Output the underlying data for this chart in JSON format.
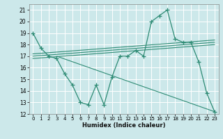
{
  "xlabel": "Humidex (Indice chaleur)",
  "bg_color": "#cce8ea",
  "grid_color": "#ffffff",
  "line_color": "#2e8b74",
  "xlim": [
    -0.5,
    23.5
  ],
  "ylim": [
    12,
    21.5
  ],
  "xticks": [
    0,
    1,
    2,
    3,
    4,
    5,
    6,
    7,
    8,
    9,
    10,
    11,
    12,
    13,
    14,
    15,
    16,
    17,
    18,
    19,
    20,
    21,
    22,
    23
  ],
  "yticks": [
    12,
    13,
    14,
    15,
    16,
    17,
    18,
    19,
    20,
    21
  ],
  "main_x": [
    0,
    1,
    2,
    3,
    4,
    5,
    6,
    7,
    8,
    9,
    10,
    11,
    12,
    13,
    14,
    15,
    16,
    17,
    18,
    19,
    20,
    21,
    22,
    23
  ],
  "main_y": [
    19.0,
    17.7,
    17.0,
    16.8,
    15.5,
    14.5,
    13.0,
    12.8,
    14.5,
    12.8,
    15.2,
    17.0,
    17.0,
    17.5,
    17.0,
    20.0,
    20.5,
    21.0,
    18.5,
    18.2,
    18.2,
    16.5,
    13.8,
    12.2
  ],
  "line1_x": [
    0,
    23
  ],
  "line1_y": [
    17.0,
    18.2
  ],
  "line2_x": [
    2,
    20
  ],
  "line2_y": [
    17.0,
    18.2
  ],
  "line3_x": [
    3,
    23
  ],
  "line3_y": [
    16.7,
    12.2
  ],
  "line4_x": [
    0,
    20
  ],
  "line4_y": [
    17.0,
    18.2
  ]
}
